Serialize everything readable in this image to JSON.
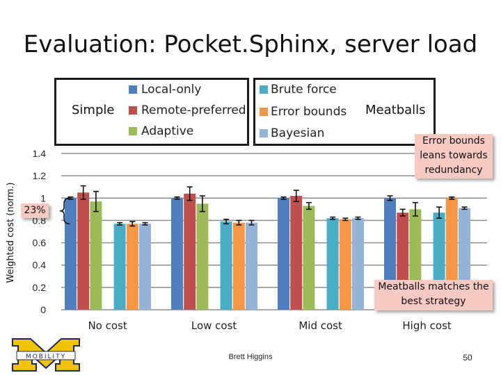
{
  "slide": {
    "title": "Evaluation: Pocket.Sphinx, server load",
    "footer": "Brett Higgins",
    "page": "50",
    "logo_text": "MOBILITY"
  },
  "legend": {
    "simple": {
      "label": "Simple",
      "items": [
        {
          "name": "Local-only",
          "color": "#4f7fbf"
        },
        {
          "name": "Remote-preferred",
          "color": "#c0504d"
        },
        {
          "name": "Adaptive",
          "color": "#9bbb59"
        }
      ]
    },
    "meatballs": {
      "label": "Meatballs",
      "items": [
        {
          "name": "Brute force",
          "color": "#4bacc6"
        },
        {
          "name": "Error bounds",
          "color": "#f79646"
        },
        {
          "name": "Bayesian",
          "color": "#95b3d7"
        }
      ]
    }
  },
  "annotations": {
    "reduction": "23%",
    "error_bounds_note": "Error bounds leans towards redundancy",
    "meatballs_note": "Meatballs matches the best strategy"
  },
  "chart_data": {
    "type": "bar",
    "ylabel": "Weighted cost (norm.)",
    "xlabel": "",
    "ylim": [
      0,
      1.4
    ],
    "yticks": [
      "0",
      "0.2",
      "0.4",
      "0.6",
      "0.8",
      "1",
      "1.2",
      "1.4"
    ],
    "grid": true,
    "categories": [
      "No cost",
      "Low cost",
      "Mid cost",
      "High cost"
    ],
    "series": [
      {
        "name": "Local-only",
        "values": [
          1.0,
          1.0,
          1.0,
          1.0
        ],
        "errors": [
          0.01,
          0.01,
          0.01,
          0.02
        ]
      },
      {
        "name": "Remote-preferred",
        "values": [
          1.05,
          1.04,
          1.02,
          0.87
        ],
        "errors": [
          0.06,
          0.06,
          0.05,
          0.03
        ]
      },
      {
        "name": "Adaptive",
        "values": [
          0.97,
          0.95,
          0.93,
          0.9
        ],
        "errors": [
          0.09,
          0.07,
          0.03,
          0.06
        ]
      },
      {
        "name": "Brute force",
        "values": [
          0.77,
          0.79,
          0.82,
          0.87
        ],
        "errors": [
          0.01,
          0.02,
          0.01,
          0.05
        ]
      },
      {
        "name": "Error bounds",
        "values": [
          0.77,
          0.78,
          0.81,
          1.0
        ],
        "errors": [
          0.02,
          0.02,
          0.01,
          0.01
        ]
      },
      {
        "name": "Bayesian",
        "values": [
          0.77,
          0.78,
          0.82,
          0.91
        ],
        "errors": [
          0.01,
          0.02,
          0.01,
          0.01
        ]
      }
    ]
  }
}
